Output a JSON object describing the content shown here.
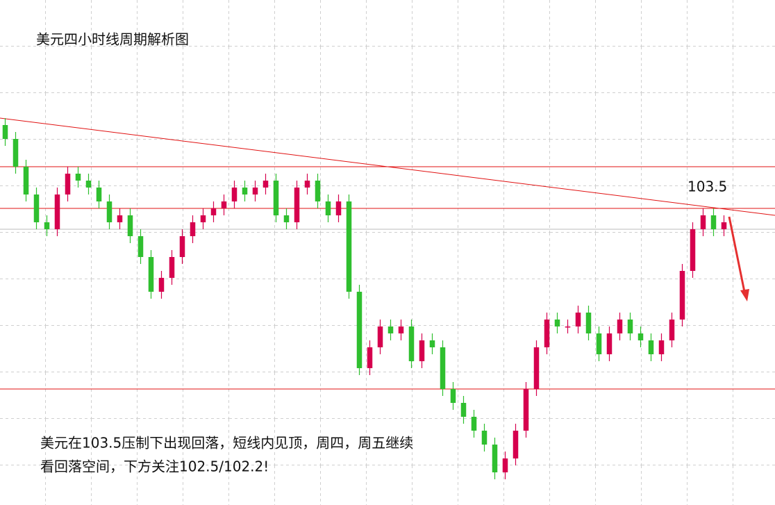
{
  "chart_data": {
    "type": "candlestick",
    "title": "美元四小时线周期解析图",
    "annotations": [
      "103.5",
      "美元在103.5压制下出现回落，短线内见顶，周四，周五继续",
      "看回落空间，下方关注102.5/102.2!"
    ],
    "up_color": "#d6004e",
    "down_color": "#2fbf2f",
    "xlim": [
      -0.5,
      73.9
    ],
    "ylim": [
      99.23,
      106.5
    ],
    "levels": [
      104.1,
      103.5,
      100.9
    ],
    "level_color": "#e01010",
    "reference_level": 103.2,
    "trendline": {
      "x": [
        -0.5,
        73.9
      ],
      "values": [
        104.8,
        103.4
      ]
    },
    "open": [
      104.7,
      104.5,
      104.1,
      103.7,
      103.3,
      103.2,
      103.7,
      104.0,
      103.9,
      103.8,
      103.6,
      103.3,
      103.4,
      103.1,
      102.8,
      102.3,
      102.5,
      102.8,
      103.1,
      103.3,
      103.4,
      103.5,
      103.6,
      103.8,
      103.7,
      103.8,
      103.9,
      103.4,
      103.3,
      103.8,
      103.9,
      103.6,
      103.4,
      103.6,
      102.3,
      101.2,
      101.5,
      101.8,
      101.7,
      101.8,
      101.3,
      101.6,
      101.5,
      100.9,
      100.7,
      100.5,
      100.3,
      100.1,
      99.7,
      99.9,
      100.3,
      100.9,
      101.5,
      101.9,
      101.8,
      101.8,
      102.0,
      101.7,
      101.4,
      101.7,
      101.9,
      101.7,
      101.6,
      101.4,
      101.6,
      101.9,
      102.6,
      103.2,
      103.4,
      103.2
    ],
    "high": [
      104.8,
      104.6,
      104.2,
      103.8,
      103.4,
      103.8,
      104.1,
      104.1,
      104.0,
      103.9,
      103.7,
      103.5,
      103.5,
      103.2,
      102.9,
      102.6,
      102.9,
      103.2,
      103.4,
      103.5,
      103.6,
      103.7,
      103.9,
      103.9,
      103.9,
      104.0,
      104.0,
      103.5,
      103.9,
      104.0,
      104.0,
      103.7,
      103.7,
      103.7,
      102.4,
      101.6,
      101.9,
      101.9,
      101.9,
      101.9,
      101.7,
      101.7,
      101.6,
      101.0,
      100.8,
      100.6,
      100.4,
      100.2,
      100.0,
      100.4,
      101.0,
      101.6,
      102.0,
      102.0,
      101.9,
      102.1,
      102.1,
      101.8,
      101.8,
      102.0,
      102.0,
      101.8,
      101.7,
      101.7,
      102.0,
      102.7,
      103.3,
      103.5,
      103.5,
      103.4
    ],
    "low": [
      104.4,
      104.0,
      103.6,
      103.2,
      103.1,
      103.1,
      103.6,
      103.8,
      103.7,
      103.5,
      103.2,
      103.2,
      103.0,
      102.7,
      102.2,
      102.2,
      102.4,
      102.7,
      103.0,
      103.2,
      103.3,
      103.4,
      103.5,
      103.6,
      103.6,
      103.7,
      103.3,
      103.2,
      103.2,
      103.7,
      103.5,
      103.3,
      103.3,
      102.2,
      101.1,
      101.1,
      101.4,
      101.6,
      101.6,
      101.2,
      101.2,
      101.4,
      100.8,
      100.6,
      100.4,
      100.2,
      100.0,
      99.6,
      99.6,
      99.8,
      100.2,
      100.8,
      101.4,
      101.7,
      101.7,
      101.7,
      101.6,
      101.3,
      101.3,
      101.6,
      101.6,
      101.5,
      101.3,
      101.3,
      101.5,
      101.8,
      102.5,
      103.1,
      103.1,
      103.1
    ],
    "close": [
      104.5,
      104.1,
      103.7,
      103.3,
      103.2,
      103.7,
      104.0,
      103.9,
      103.8,
      103.6,
      103.3,
      103.4,
      103.1,
      102.8,
      102.3,
      102.5,
      102.8,
      103.1,
      103.3,
      103.4,
      103.5,
      103.6,
      103.8,
      103.7,
      103.8,
      103.9,
      103.4,
      103.3,
      103.8,
      103.9,
      103.6,
      103.4,
      103.6,
      102.3,
      101.2,
      101.5,
      101.8,
      101.7,
      101.8,
      101.3,
      101.6,
      101.5,
      100.9,
      100.7,
      100.5,
      100.3,
      100.1,
      99.7,
      99.9,
      100.3,
      100.9,
      101.5,
      101.9,
      101.8,
      101.8,
      102.0,
      101.7,
      101.4,
      101.7,
      101.9,
      101.7,
      101.6,
      101.4,
      101.6,
      101.9,
      102.6,
      103.2,
      103.4,
      103.2,
      103.3
    ]
  }
}
